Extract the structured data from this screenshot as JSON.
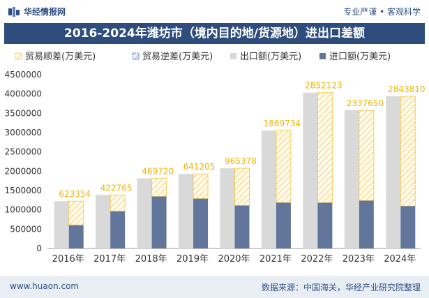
{
  "header": {
    "brand": "华经情报网",
    "slogan": "专业严谨 • 客观科学"
  },
  "footer": {
    "url": "www.huaon.com",
    "source": "数据来源：中国海关，华经产业研究院整理"
  },
  "colors": {
    "title_bg": "#2e4d7d",
    "export_bar": "#d9d9d9",
    "import_bar": "#62769c",
    "surplus_stroke": "#f2c12e",
    "deficit_stroke": "#4f7fbf",
    "label_color": "#f0b400"
  },
  "chart_data": {
    "type": "bar",
    "title": "2016-2024年潍坊市（境内目的地/货源地）进出口差额",
    "categories": [
      "2016年",
      "2017年",
      "2018年",
      "2019年",
      "2020年",
      "2021年",
      "2022年",
      "2023年",
      "2024年"
    ],
    "series": [
      {
        "name": "贸易顺差(万美元)",
        "values": [
          623354,
          422765,
          469720,
          641205,
          965378,
          1869734,
          2852123,
          2337650,
          2843810
        ]
      },
      {
        "name": "贸易逆差(万美元)",
        "values": [
          0,
          0,
          0,
          0,
          0,
          0,
          0,
          0,
          0
        ]
      },
      {
        "name": "出口额(万美元)",
        "values": [
          1225000,
          1385000,
          1815000,
          1930000,
          2075000,
          3055000,
          4035000,
          3575000,
          3940000
        ]
      },
      {
        "name": "进口额(万美元)",
        "values": [
          602000,
          962000,
          1345000,
          1289000,
          1110000,
          1185000,
          1183000,
          1237000,
          1096000
        ]
      }
    ],
    "data_labels": [
      "623354",
      "422765",
      "469720",
      "641205",
      "965378",
      "1869734",
      "2852123",
      "2337650",
      "2843810"
    ],
    "ylim": [
      0,
      4500000
    ],
    "yticks": [
      0,
      500000,
      1000000,
      1500000,
      2000000,
      2500000,
      3000000,
      3500000,
      4000000,
      4500000
    ],
    "legend_position": "top",
    "grid": false
  }
}
